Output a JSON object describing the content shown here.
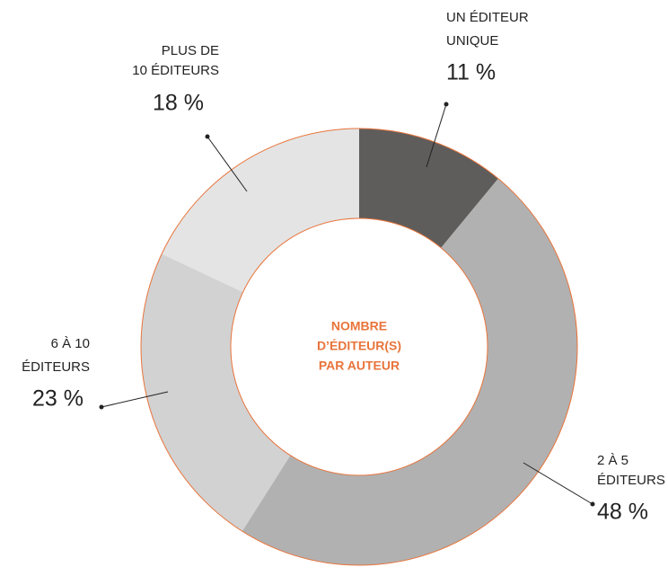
{
  "chart_data": {
    "type": "donut",
    "center_label": [
      "NOMBRE",
      "D’ÉDITEUR(S)",
      "PAR AUTEUR"
    ],
    "categories": [
      [
        "UN ÉDITEUR",
        "UNIQUE"
      ],
      [
        "2 À 5",
        "ÉDITEURS"
      ],
      [
        "6 À 10",
        "ÉDITEURS"
      ],
      [
        "PLUS DE",
        "10 ÉDITEURS"
      ]
    ],
    "values": [
      11,
      48,
      23,
      18
    ],
    "value_labels": [
      "11 %",
      "48 %",
      "23 %",
      "18 %"
    ],
    "colors": [
      "#5f5d5b",
      "#b1b1b1",
      "#d2d2d2",
      "#e4e4e4"
    ],
    "outline_color": "#e8743b"
  }
}
